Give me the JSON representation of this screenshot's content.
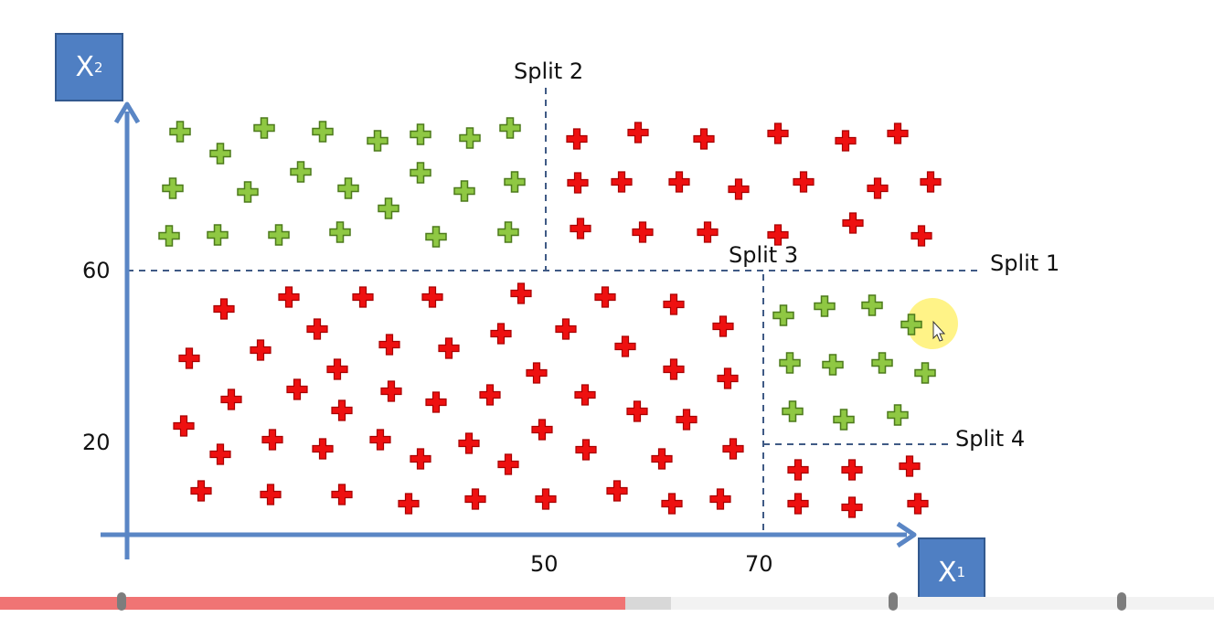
{
  "axes": {
    "x_label_main": "X",
    "x_label_sub": "1",
    "y_label_main": "X",
    "y_label_sub": "2",
    "x_ticks": [
      "50",
      "70"
    ],
    "y_ticks": [
      "60",
      "20"
    ]
  },
  "splits": {
    "split1": "Split 1",
    "split2": "Split 2",
    "split3": "Split 3",
    "split4": "Split 4"
  },
  "colors": {
    "axis": "#5a86c5",
    "split_line": "#3f5a85",
    "green_plus": "#8fc843",
    "green_stroke": "#4d7a1c",
    "red_plus": "#ee1010",
    "red_stroke": "#a80000",
    "highlight": "#fff27a",
    "progress_played": "#f07474",
    "progress_buffered": "#d8d8d8"
  },
  "icons": {
    "green_marker": "green-plus-icon",
    "red_marker": "red-plus-icon",
    "cursor": "mouse-pointer-icon"
  },
  "progress": {
    "played_fraction": 0.515,
    "buffered_fraction": 0.553
  }
}
